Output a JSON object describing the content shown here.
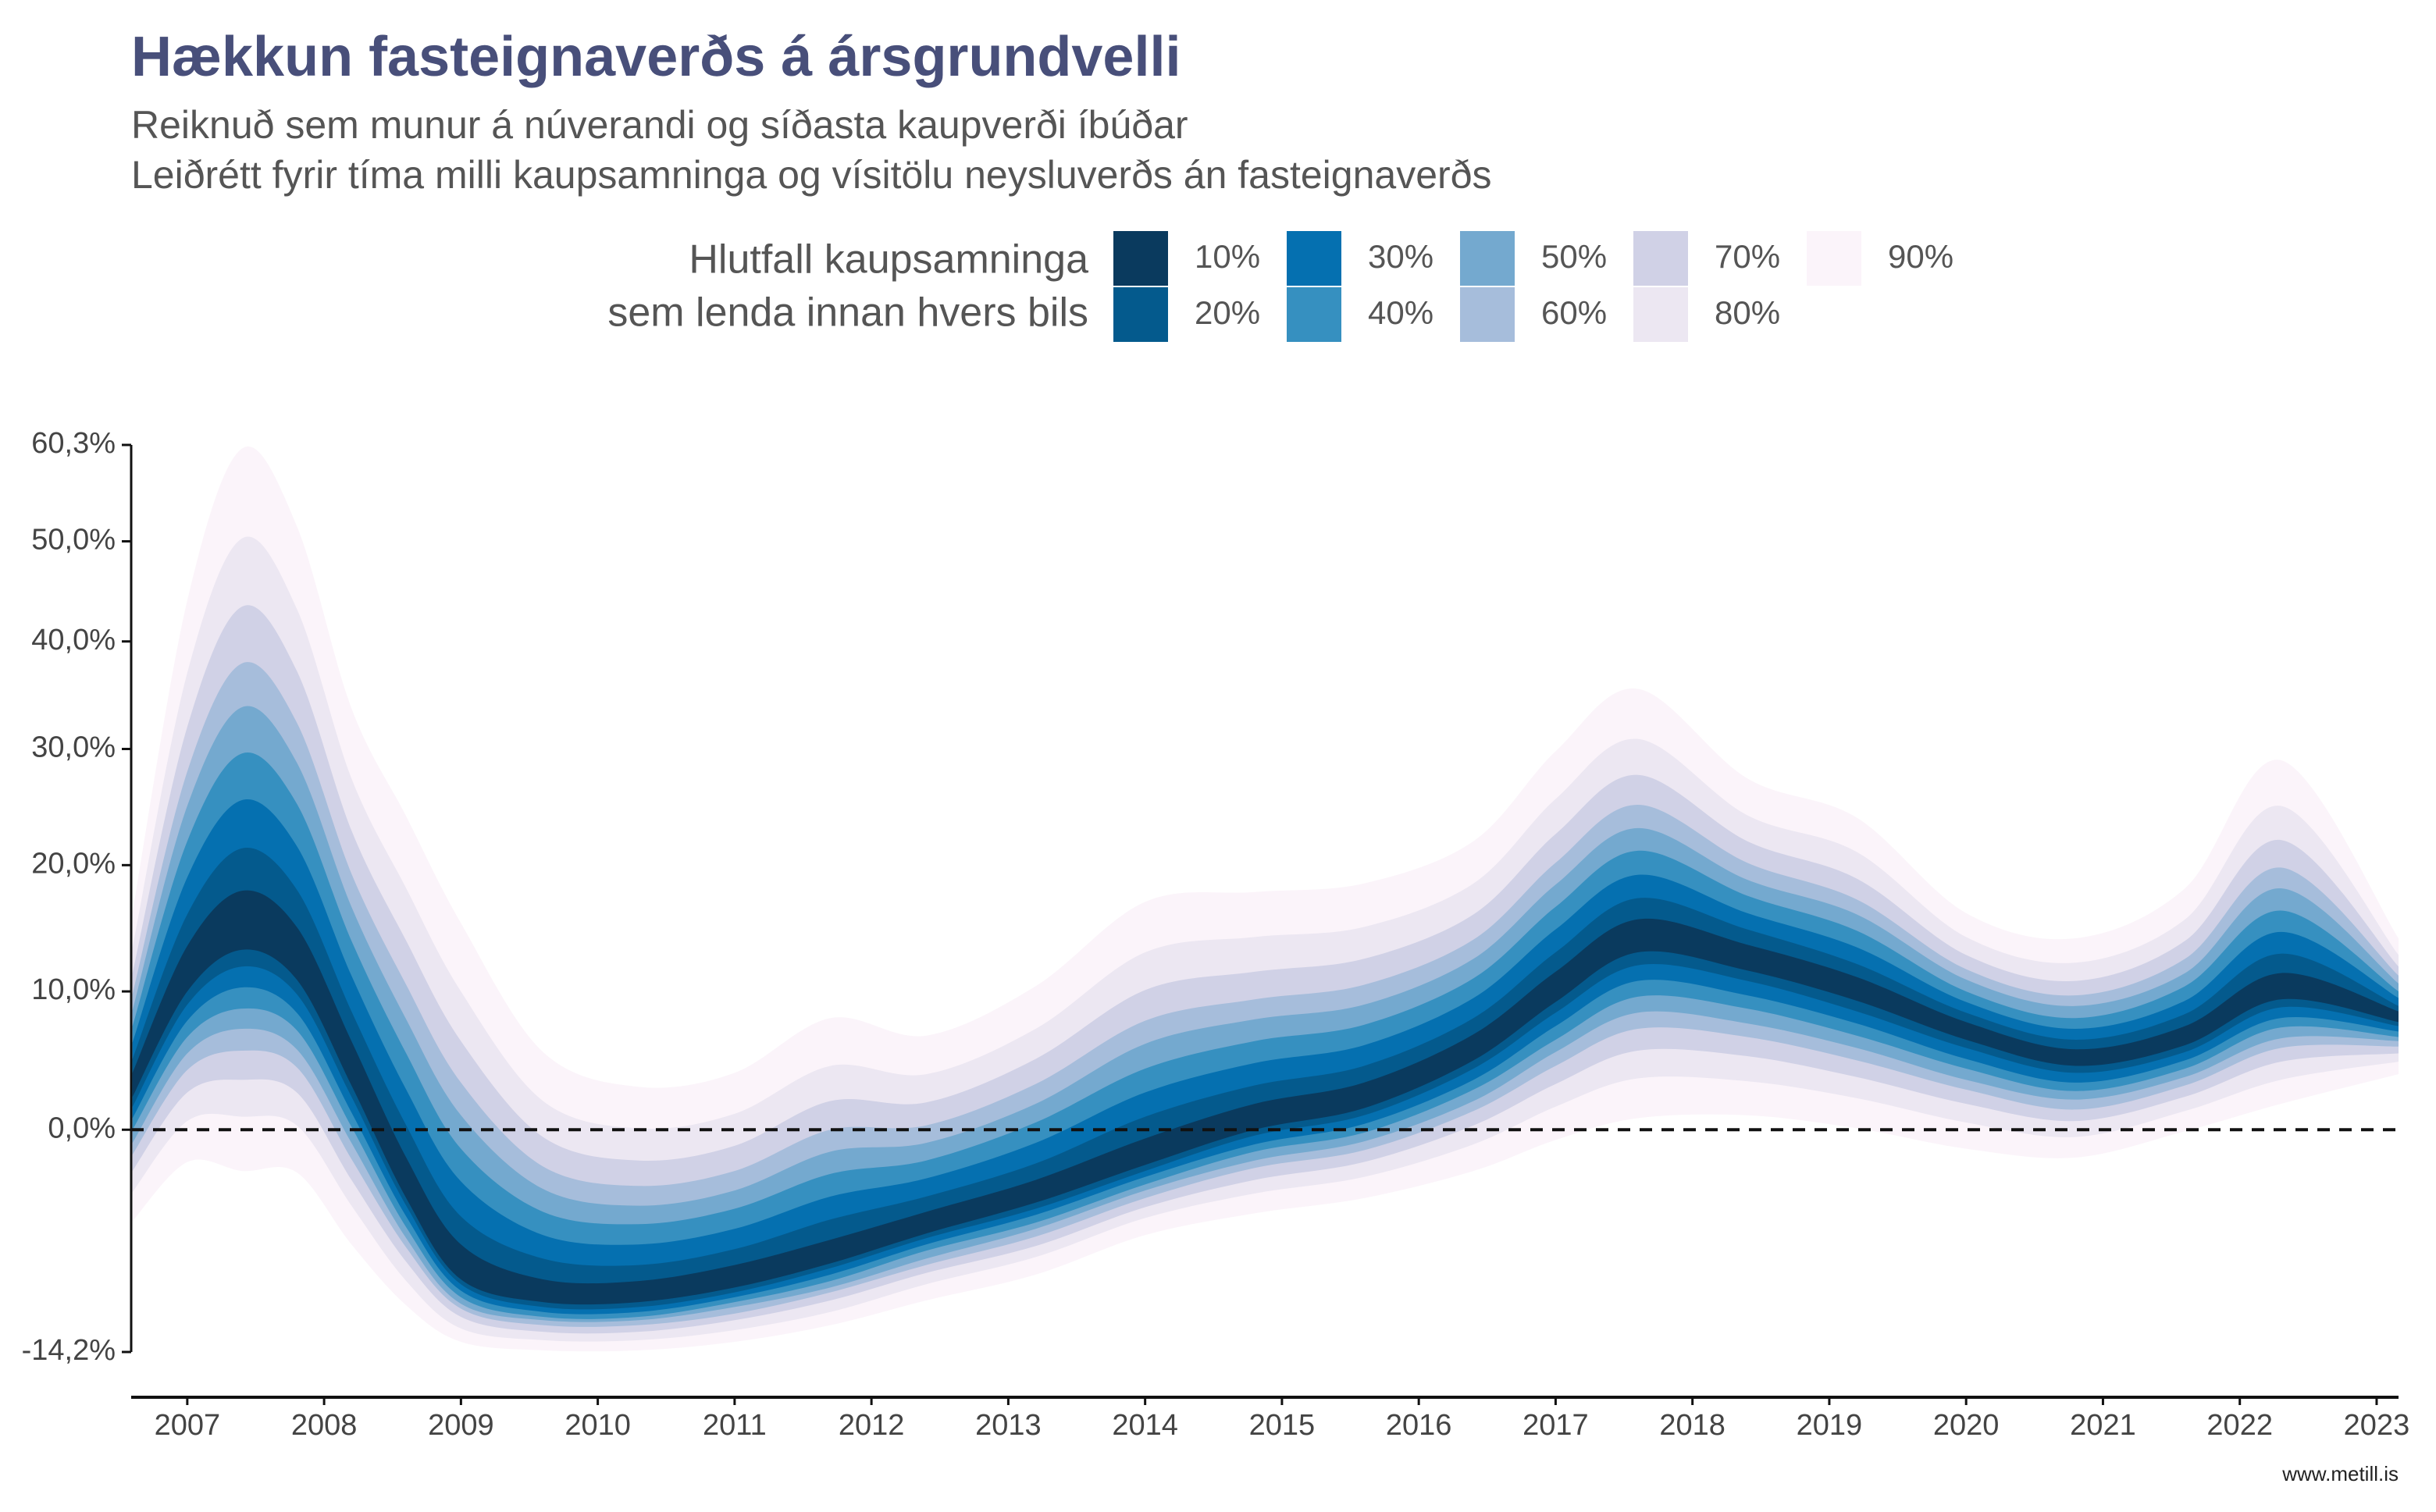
{
  "chart_data": {
    "type": "fan",
    "title": "Hækkun fasteignaverðs á ársgrundvelli",
    "subtitle": [
      "Reiknuð sem munur á núverandi og síðasta kaupverði íbúðar",
      "Leiðrétt fyrir tíma milli kaupsamninga og vísitölu neysluverðs án fasteignaverðs"
    ],
    "legend_title": [
      "Hlutfall kaupsamninga",
      "sem lenda innan hvers bils"
    ],
    "caption": "www.metill.is",
    "yscale": "log1p",
    "reference_line": 0,
    "xlim": [
      2006.59,
      2023.16
    ],
    "xticks": [
      2007,
      2008,
      2009,
      2010,
      2011,
      2012,
      2013,
      2014,
      2015,
      2016,
      2017,
      2018,
      2019,
      2020,
      2021,
      2022,
      2023
    ],
    "ylim": [
      -14.2,
      60.3
    ],
    "yticks": [
      {
        "value": -14.2,
        "label": "-14,2%"
      },
      {
        "value": 0,
        "label": "0,0%"
      },
      {
        "value": 10,
        "label": "10,0%"
      },
      {
        "value": 20,
        "label": "20,0%"
      },
      {
        "value": 30,
        "label": "30,0%"
      },
      {
        "value": 40,
        "label": "40,0%"
      },
      {
        "value": 50,
        "label": "50,0%"
      },
      {
        "value": 60.3,
        "label": "60,3%"
      }
    ],
    "x": [
      2006.6,
      2007.0,
      2007.4,
      2007.8,
      2008.2,
      2008.6,
      2009.0,
      2009.6,
      2010.3,
      2011.0,
      2011.7,
      2012.4,
      2013.2,
      2014.0,
      2014.8,
      2015.6,
      2016.4,
      2017.0,
      2017.6,
      2018.4,
      2019.2,
      2020.0,
      2020.8,
      2021.6,
      2022.3,
      2023.16
    ],
    "series": [
      {
        "name": "10%",
        "color": "#0a3a5e",
        "upper": [
          4,
          13.5,
          17.9,
          15,
          6.3,
          -1.9,
          -7.6,
          -9.8,
          -9.9,
          -8.9,
          -7.3,
          -5.5,
          -3.4,
          -0.6,
          1.8,
          3.3,
          6.8,
          11.5,
          15.6,
          13.6,
          11.1,
          7.7,
          5.7,
          7.4,
          11.4,
          8.5
        ],
        "lower": [
          2.3,
          10,
          13.2,
          10.9,
          3.1,
          -4.6,
          -9.8,
          -11.2,
          -11.2,
          -10.3,
          -8.8,
          -6.9,
          -4.9,
          -2.4,
          0,
          1.5,
          4.9,
          9.2,
          13,
          11.6,
          9.3,
          6.4,
          4.5,
          6,
          9.4,
          7.7
        ]
      },
      {
        "name": "20%",
        "color": "#045a8d",
        "upper": [
          5,
          16,
          21.4,
          18,
          8.5,
          0.3,
          -5.8,
          -8.5,
          -8.9,
          -7.9,
          -6,
          -4.5,
          -2.3,
          0.9,
          3.1,
          4.5,
          8,
          13,
          17.3,
          14.8,
          12.1,
          8.4,
          6.4,
          8.3,
          12.9,
          8.9
        ],
        "lower": [
          1.6,
          9,
          11.9,
          9.8,
          2.3,
          -5.1,
          -10.1,
          -11.5,
          -11.5,
          -10.6,
          -9.1,
          -7.2,
          -5.3,
          -2.8,
          -0.4,
          1,
          4.3,
          8.4,
          12,
          10.8,
          8.5,
          5.8,
          4,
          5.5,
          8.8,
          7.4
        ]
      },
      {
        "name": "30%",
        "color": "#0570b0",
        "upper": [
          6.2,
          19,
          25.5,
          21.6,
          11.2,
          2.8,
          -3.5,
          -7,
          -7.6,
          -6.6,
          -4.5,
          -3.3,
          -0.9,
          2.6,
          4.7,
          6,
          9.5,
          14.8,
          19.2,
          16.1,
          13.4,
          9.2,
          7.2,
          9.3,
          14.6,
          9.5
        ],
        "lower": [
          0.8,
          7.8,
          10.3,
          8.4,
          1.2,
          -5.8,
          -10.5,
          -11.8,
          -11.8,
          -10.9,
          -9.5,
          -7.6,
          -5.7,
          -3.2,
          -1,
          0.4,
          3.5,
          7.4,
          10.8,
          9.7,
          7.6,
          5,
          3.3,
          4.9,
          8,
          7
        ]
      },
      {
        "name": "40%",
        "color": "#3690c0",
        "upper": [
          7.4,
          22,
          29.6,
          25.2,
          13.9,
          5.4,
          -1.3,
          -5.5,
          -6.3,
          -5.3,
          -3,
          -2.1,
          0.5,
          4.3,
          6.3,
          7.5,
          11,
          16.6,
          21.2,
          17.5,
          14.7,
          10,
          8,
          10.4,
          16.3,
          10
        ],
        "lower": [
          0,
          6.6,
          8.7,
          7.1,
          0.2,
          -6.5,
          -10.9,
          -12.1,
          -12.1,
          -11.2,
          -9.9,
          -8,
          -6.2,
          -3.7,
          -1.5,
          -0.2,
          2.8,
          6.4,
          9.6,
          8.7,
          6.7,
          4.3,
          2.7,
          4.3,
          7.3,
          6.6
        ]
      },
      {
        "name": "50%",
        "color": "#74a9cf",
        "upper": [
          8.6,
          25,
          33.8,
          28.8,
          16.6,
          7.9,
          1,
          -4,
          -5.1,
          -4.1,
          -1.5,
          -0.9,
          1.8,
          6.1,
          7.9,
          9,
          12.5,
          18.4,
          23.1,
          18.8,
          16,
          10.9,
          8.9,
          11.4,
          18.1,
          10.6
        ],
        "lower": [
          -0.9,
          5.4,
          7.2,
          5.7,
          -0.9,
          -7.2,
          -11.3,
          -12.3,
          -12.3,
          -11.5,
          -10.3,
          -8.5,
          -6.6,
          -4.1,
          -2.1,
          -0.8,
          2,
          5.5,
          8.4,
          7.6,
          5.8,
          3.5,
          2.1,
          3.7,
          6.5,
          6.3
        ]
      },
      {
        "name": "60%",
        "color": "#a6bddb",
        "upper": [
          9.8,
          28,
          37.9,
          32.4,
          19.3,
          10.5,
          3.3,
          -2.5,
          -3.8,
          -2.8,
          0,
          0.3,
          3.2,
          7.8,
          9.4,
          10.5,
          14,
          20.2,
          25.1,
          20.2,
          17.2,
          11.7,
          9.7,
          12.5,
          19.8,
          11.2
        ],
        "lower": [
          -1.7,
          4.2,
          5.6,
          4.4,
          -2,
          -7.8,
          -11.6,
          -12.6,
          -12.6,
          -11.9,
          -10.6,
          -8.9,
          -7.1,
          -4.6,
          -2.6,
          -1.4,
          1.3,
          4.5,
          7.2,
          6.6,
          4.9,
          2.8,
          1.4,
          3.1,
          5.8,
          5.9
        ]
      },
      {
        "name": "70%",
        "color": "#d0d1e6",
        "upper": [
          11.4,
          32,
          43.4,
          37.2,
          22.9,
          13.9,
          6.3,
          -0.5,
          -2.1,
          -1.1,
          2,
          1.9,
          5,
          10.1,
          11.5,
          12.5,
          16,
          22.6,
          27.7,
          22,
          18.9,
          12.8,
          10.8,
          13.9,
          22.1,
          11.9
        ],
        "lower": [
          -2.8,
          2.6,
          3.5,
          2.6,
          -3.4,
          -8.7,
          -12.1,
          -13,
          -13,
          -12.3,
          -11.1,
          -9.4,
          -7.7,
          -5.2,
          -3.4,
          -2.2,
          0.3,
          3.2,
          5.6,
          5.2,
          3.7,
          1.8,
          0.6,
          2.3,
          4.8,
          5.4
        ]
      },
      {
        "name": "80%",
        "color": "#ece7f2",
        "upper": [
          13.4,
          37,
          50.3,
          43.2,
          27.4,
          18.1,
          10,
          2,
          0.1,
          1.1,
          4.5,
          3.9,
          7.2,
          13,
          14.2,
          15,
          18.5,
          25.6,
          30.9,
          24.2,
          21.1,
          14.2,
          12.2,
          15.6,
          25,
          12.8
        ],
        "lower": [
          -4.2,
          0.6,
          0.9,
          0.3,
          -5.1,
          -9.9,
          -12.8,
          -13.5,
          -13.5,
          -12.9,
          -11.8,
          -10.1,
          -8.4,
          -5.9,
          -4.3,
          -3.2,
          -1,
          1.6,
          3.6,
          3.4,
          2.2,
          0.5,
          -0.5,
          1.3,
          3.5,
          4.8
        ]
      },
      {
        "name": "90%",
        "color": "#fbf4fa",
        "upper": [
          16.2,
          44,
          59.9,
          51.6,
          33.7,
          24.1,
          15.3,
          5.5,
          3,
          4,
          8,
          6.7,
          10.4,
          17,
          17.8,
          18.5,
          22,
          29.8,
          35.5,
          27.4,
          24,
          16.1,
          14.1,
          18.1,
          29,
          14.1
        ],
        "lower": [
          -6.1,
          -2.2,
          -2.8,
          -2.9,
          -7.6,
          -11.4,
          -13.6,
          -14.1,
          -14.1,
          -13.6,
          -12.6,
          -11.1,
          -9.5,
          -7,
          -5.6,
          -4.6,
          -2.8,
          -0.7,
          0.8,
          1,
          0.1,
          -1.3,
          -1.9,
          -0.1,
          1.8,
          3.9
        ]
      }
    ]
  }
}
